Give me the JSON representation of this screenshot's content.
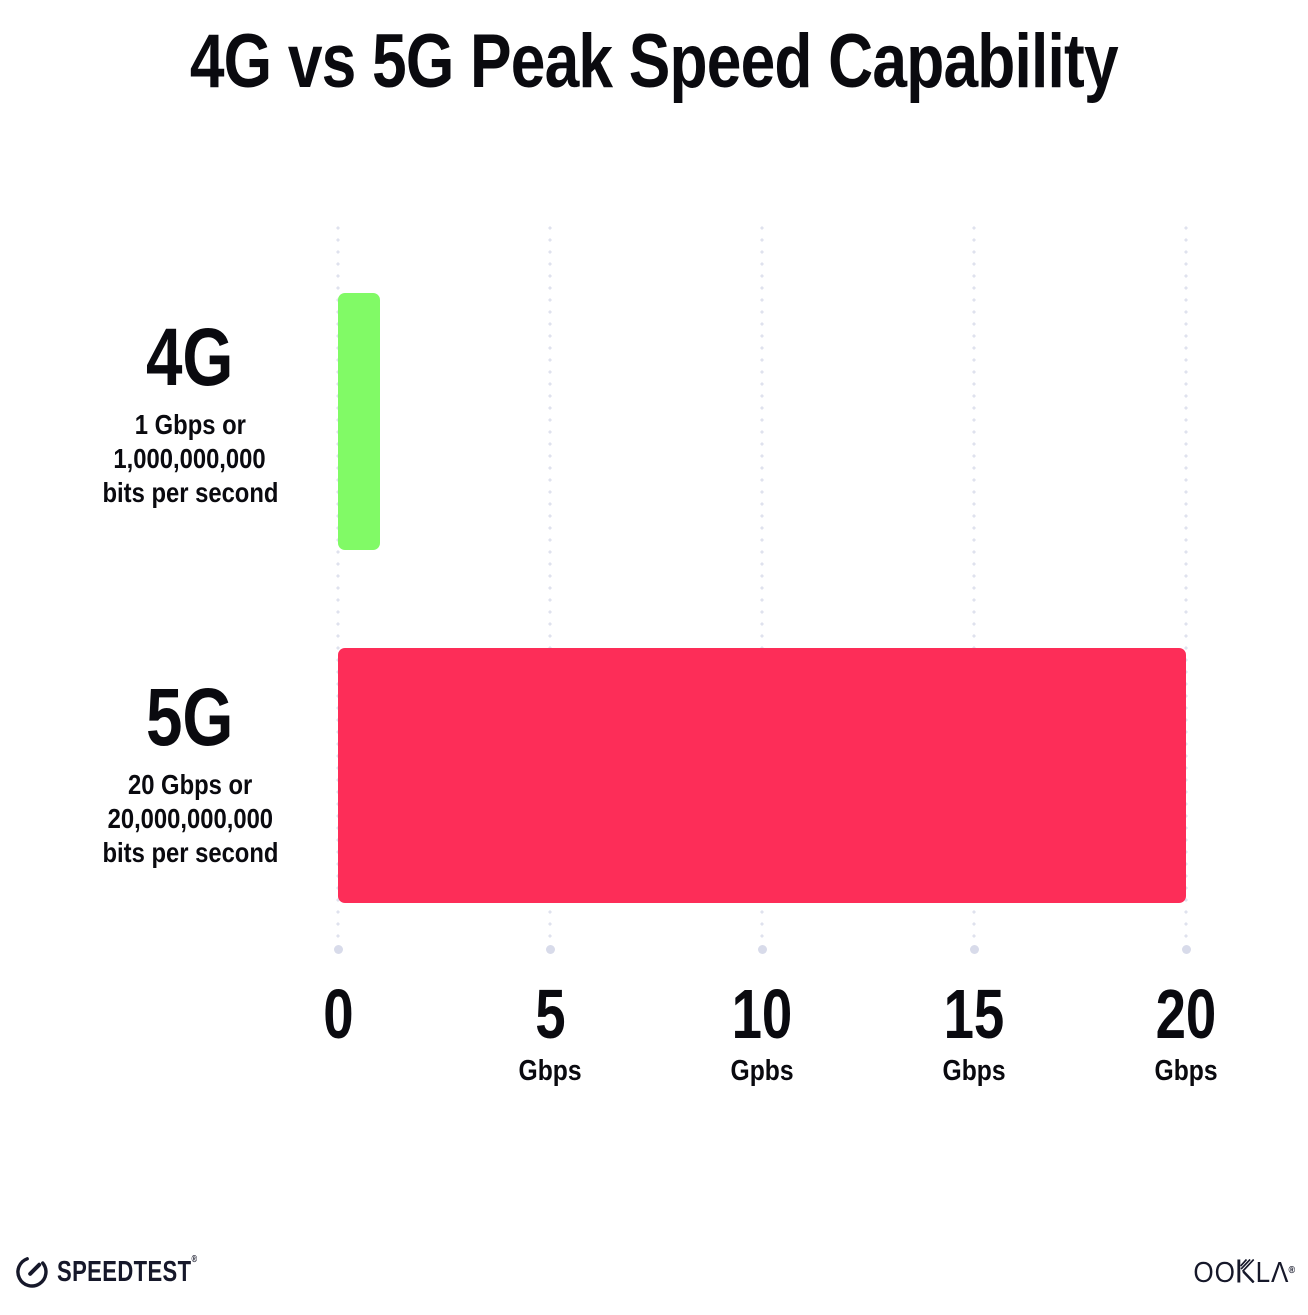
{
  "title": "4G vs 5G Peak Speed Capability",
  "chart_data": {
    "type": "bar",
    "orientation": "horizontal",
    "title": "4G vs 5G Peak Speed Capability",
    "categories": [
      "4G",
      "5G"
    ],
    "values": [
      1,
      20
    ],
    "value_unit": "Gbps",
    "bar_colors": [
      "#81FA66",
      "#FD2D58"
    ],
    "category_sublabels": [
      {
        "line1": "1 Gbps or",
        "line2": "1,000,000,000",
        "line3": "bits per second"
      },
      {
        "line1": "20 Gbps or",
        "line2": "20,000,000,000",
        "line3": "bits per second"
      }
    ],
    "x_ticks": [
      {
        "value": "0",
        "unit": ""
      },
      {
        "value": "5",
        "unit": "Gbps"
      },
      {
        "value": "10",
        "unit": "Gpbs"
      },
      {
        "value": "15",
        "unit": "Gbps"
      },
      {
        "value": "20",
        "unit": "Gbps"
      }
    ],
    "xlim": [
      0,
      20
    ],
    "grid": "vertical-dotted",
    "legend": "none"
  },
  "footer": {
    "speedtest_label": "SPEEDTEST",
    "speedtest_mark": "®",
    "ookla_left": "OO",
    "ookla_l": "L",
    "ookla_a": "Λ",
    "ookla_mark": "®"
  },
  "colors": {
    "bar_4g": "#81FA66",
    "bar_5g": "#FD2D58",
    "gridline": "#DFE2EE",
    "gridline_end_dot": "#D8DBEA",
    "text": "#0A0A0F",
    "logo": "#16182A",
    "background": "#FFFFFF"
  }
}
